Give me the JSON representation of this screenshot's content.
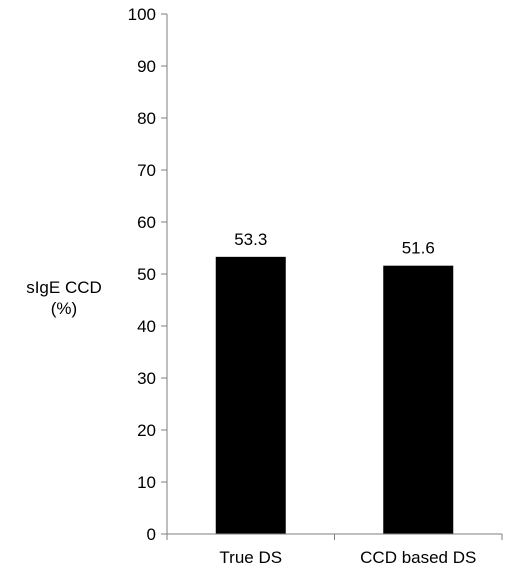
{
  "chart_data": {
    "type": "bar",
    "title": "",
    "xlabel": "",
    "ylabel": "sIgE CCD\n(%)",
    "ylim": [
      0,
      100
    ],
    "yticks": [
      0,
      10,
      20,
      30,
      40,
      50,
      60,
      70,
      80,
      90,
      100
    ],
    "categories": [
      "True DS",
      "CCD based DS"
    ],
    "values": [
      53.3,
      51.6
    ],
    "data_labels": [
      "53.3",
      "51.6"
    ],
    "bar_color": "#000000",
    "grid": false,
    "legend": "none"
  }
}
